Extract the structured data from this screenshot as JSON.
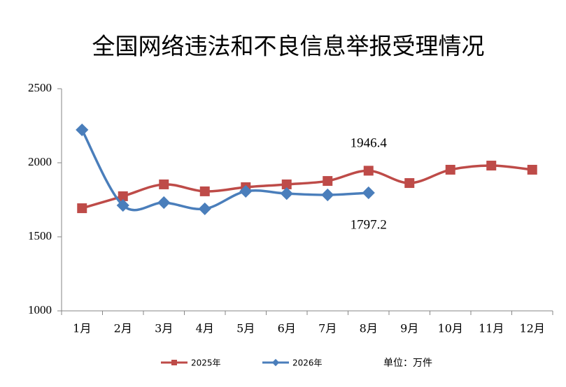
{
  "chart_data": {
    "type": "line",
    "title": "全国网络违法和不良信息举报受理情况",
    "categories": [
      "1月",
      "2月",
      "3月",
      "4月",
      "5月",
      "6月",
      "7月",
      "8月",
      "9月",
      "10月",
      "11月",
      "12月"
    ],
    "series": [
      {
        "name": "2025年",
        "color": "#be4b48",
        "marker": "square",
        "values": [
          1693,
          1774,
          1854,
          1807,
          1835,
          1854,
          1877,
          1946.4,
          1863,
          1953,
          1981,
          1953
        ],
        "value_labels": [
          null,
          null,
          null,
          null,
          null,
          null,
          null,
          "1946.4",
          null,
          null,
          null,
          null
        ]
      },
      {
        "name": "2026年",
        "color": "#4a7ebb",
        "marker": "diamond",
        "values": [
          2222,
          1712,
          1731,
          1689,
          1807,
          1792,
          1783,
          1797.2,
          null,
          null,
          null,
          null
        ],
        "value_labels": [
          null,
          null,
          null,
          null,
          null,
          null,
          null,
          "1797.2",
          null,
          null,
          null,
          null
        ]
      }
    ],
    "ylim": [
      1000,
      2500
    ],
    "yticks": [
      1000,
      1500,
      2000,
      2500
    ],
    "smooth": true,
    "legend": "bottom",
    "annotation": "单位：万件"
  }
}
